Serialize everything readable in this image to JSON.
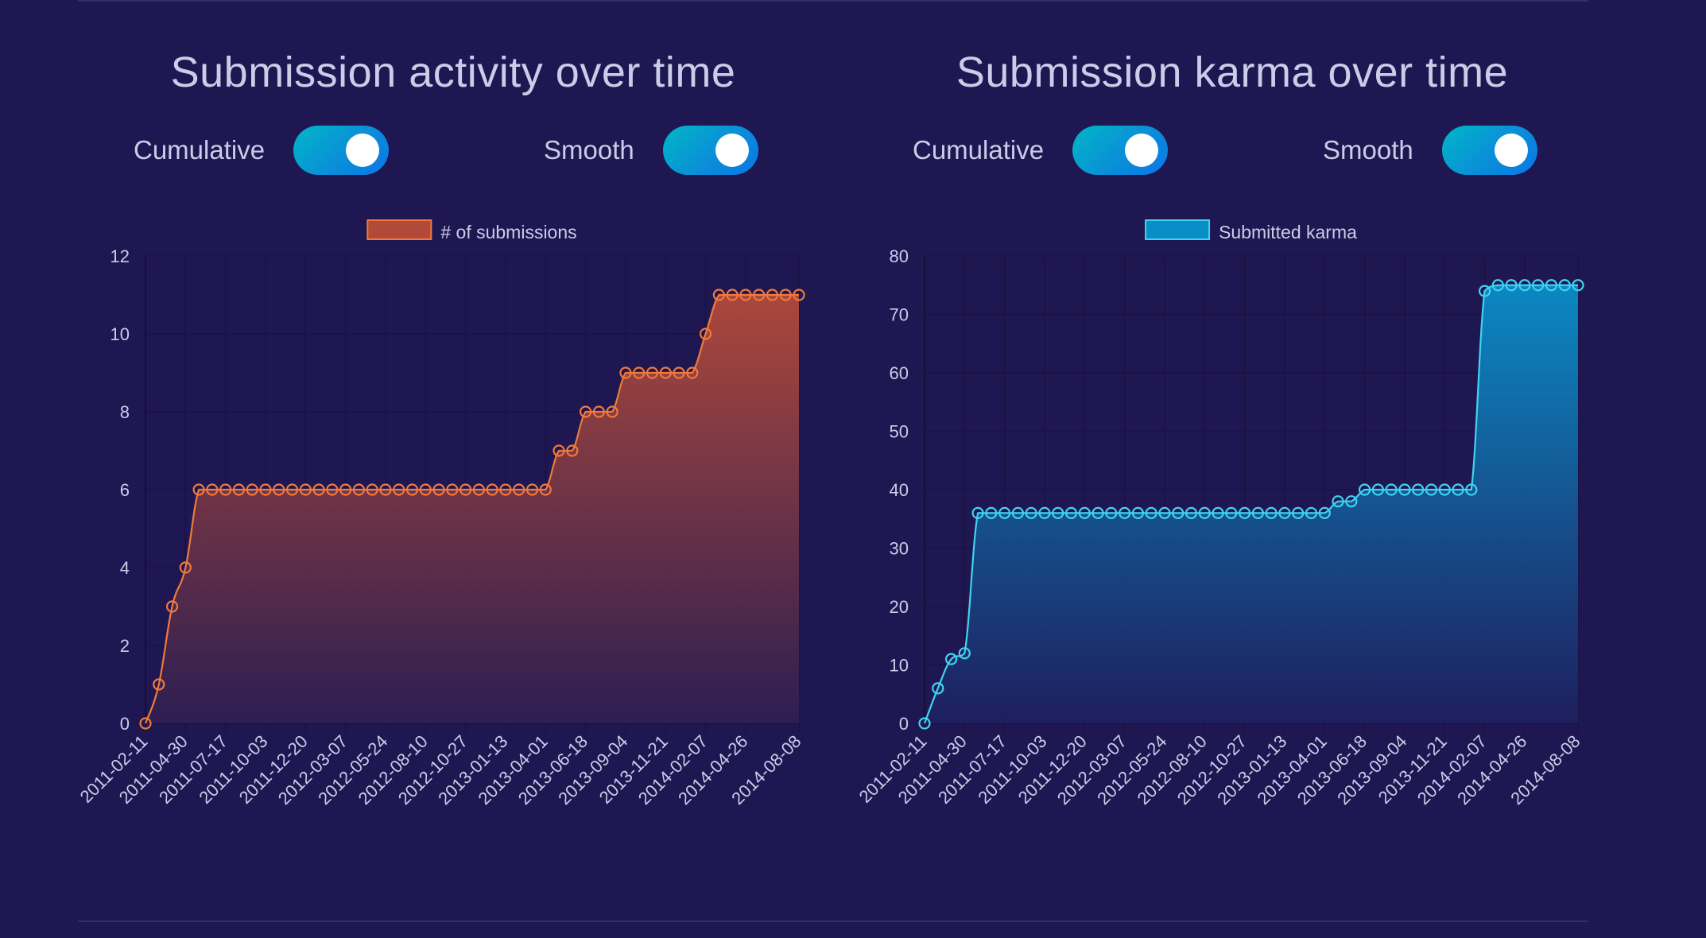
{
  "colors": {
    "background": "#1f1752",
    "grid": "#1a1340",
    "toggle_start": "#00b7c6",
    "toggle_end": "#0b76e6"
  },
  "panels": [
    {
      "title": "Submission activity over time",
      "toggles": [
        {
          "label": "Cumulative",
          "on": true
        },
        {
          "label": "Smooth",
          "on": true
        }
      ]
    },
    {
      "title": "Submission karma over time",
      "toggles": [
        {
          "label": "Cumulative",
          "on": true
        },
        {
          "label": "Smooth",
          "on": true
        }
      ]
    }
  ],
  "chart_data": [
    {
      "type": "area",
      "title": "Submission activity over time",
      "legend": [
        "# of submissions"
      ],
      "legend_position": "top",
      "color": "#f07a3c",
      "fill_top": "#b24a3a",
      "fill_bottom": "#2e1e52",
      "xlabel": "",
      "ylabel": "",
      "ylim": [
        0,
        12
      ],
      "yticks": [
        0,
        2,
        4,
        6,
        8,
        10,
        12
      ],
      "xtick_labels": [
        "2011-02-11",
        "2011-04-30",
        "2011-07-17",
        "2011-10-03",
        "2011-12-20",
        "2012-03-07",
        "2012-05-24",
        "2012-08-10",
        "2012-10-27",
        "2013-01-13",
        "2013-04-01",
        "2013-06-18",
        "2013-09-04",
        "2013-11-21",
        "2014-02-07",
        "2014-04-26",
        "2014-08-08"
      ],
      "grid": true,
      "series": [
        {
          "name": "# of submissions",
          "values": [
            0,
            1,
            3,
            4,
            6,
            6,
            6,
            6,
            6,
            6,
            6,
            6,
            6,
            6,
            6,
            6,
            6,
            6,
            6,
            6,
            6,
            6,
            6,
            6,
            6,
            6,
            6,
            6,
            6,
            6,
            6,
            7,
            7,
            8,
            8,
            8,
            9,
            9,
            9,
            9,
            9,
            9,
            10,
            11,
            11,
            11,
            11,
            11,
            11,
            11
          ]
        }
      ]
    },
    {
      "type": "area",
      "title": "Submission karma over time",
      "legend": [
        "Submitted karma"
      ],
      "legend_position": "top",
      "color": "#3fd4f0",
      "fill_top": "#0a8ec8",
      "fill_bottom": "#1e1f5e",
      "xlabel": "",
      "ylabel": "",
      "ylim": [
        0,
        80
      ],
      "yticks": [
        0,
        10,
        20,
        30,
        40,
        50,
        60,
        70,
        80
      ],
      "xtick_labels": [
        "2011-02-11",
        "2011-04-30",
        "2011-07-17",
        "2011-10-03",
        "2011-12-20",
        "2012-03-07",
        "2012-05-24",
        "2012-08-10",
        "2012-10-27",
        "2013-01-13",
        "2013-04-01",
        "2013-06-18",
        "2013-09-04",
        "2013-11-21",
        "2014-02-07",
        "2014-04-26",
        "2014-08-08"
      ],
      "grid": true,
      "series": [
        {
          "name": "Submitted karma",
          "values": [
            0,
            6,
            11,
            12,
            36,
            36,
            36,
            36,
            36,
            36,
            36,
            36,
            36,
            36,
            36,
            36,
            36,
            36,
            36,
            36,
            36,
            36,
            36,
            36,
            36,
            36,
            36,
            36,
            36,
            36,
            36,
            38,
            38,
            40,
            40,
            40,
            40,
            40,
            40,
            40,
            40,
            40,
            74,
            75,
            75,
            75,
            75,
            75,
            75,
            75
          ]
        }
      ]
    }
  ]
}
